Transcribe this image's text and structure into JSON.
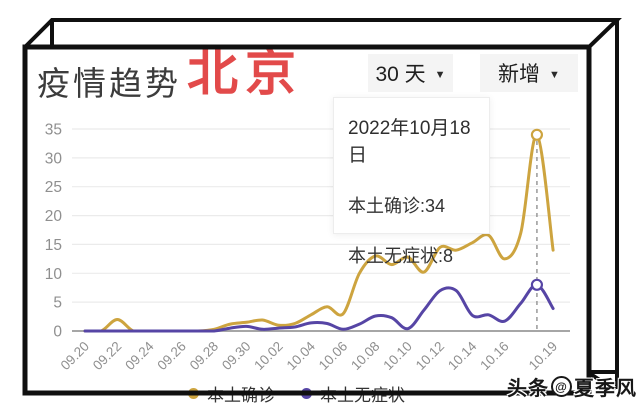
{
  "header": {
    "title": "疫情趋势",
    "region": "北京",
    "range_dropdown": {
      "label": "30 天",
      "caret": "▼"
    },
    "metric_dropdown": {
      "label": "新增",
      "caret": "▼"
    }
  },
  "tooltip": {
    "date": "2022年10月18日",
    "lines": [
      "本土确诊:34",
      "本土无症状:8"
    ]
  },
  "footer": {
    "watermark_prefix": "头条",
    "watermark_at": "@",
    "watermark_suffix": "夏季风"
  },
  "chart_data": {
    "type": "line",
    "title": "疫情趋势 北京 30天 新增",
    "x": [
      "09.20",
      "09.21",
      "09.22",
      "09.23",
      "09.24",
      "09.25",
      "09.26",
      "09.27",
      "09.28",
      "09.29",
      "09.30",
      "10.01",
      "10.02",
      "10.03",
      "10.04",
      "10.05",
      "10.06",
      "10.07",
      "10.08",
      "10.09",
      "10.10",
      "10.11",
      "10.12",
      "10.13",
      "10.14",
      "10.15",
      "10.16",
      "10.17",
      "10.18",
      "10.19"
    ],
    "x_tick_labels": [
      "09.20",
      "09.22",
      "09.24",
      "09.26",
      "09.28",
      "09.30",
      "10.02",
      "10.04",
      "10.06",
      "10.08",
      "10.10",
      "10.12",
      "10.14",
      "10.16",
      "10.19"
    ],
    "series": [
      {
        "name": "本土确诊",
        "color": "#cda43f",
        "values": [
          0,
          0,
          2,
          0,
          0,
          0,
          0,
          0,
          0.3,
          1.2,
          1.5,
          1.9,
          1.0,
          1.3,
          2.8,
          4.2,
          3.0,
          10,
          13,
          11.5,
          12.8,
          10.2,
          14.5,
          14,
          15.3,
          16.6,
          12.5,
          17,
          34,
          14
        ]
      },
      {
        "name": "本土无症状",
        "color": "#5645a5",
        "values": [
          0,
          0,
          0,
          0,
          0,
          0,
          0,
          0,
          0,
          0.5,
          0.8,
          0.3,
          0.5,
          0.7,
          1.4,
          1.3,
          0.3,
          1.2,
          2.6,
          2.3,
          0.4,
          3.6,
          7,
          7,
          2.7,
          2.8,
          1.7,
          4.8,
          8,
          3.9
        ]
      }
    ],
    "ylim": [
      0,
      35
    ],
    "yticks": [
      0,
      5,
      10,
      15,
      20,
      25,
      30,
      35
    ],
    "grid": true,
    "legend_position": "bottom",
    "highlight": {
      "date": "10.18",
      "confirmed": 34,
      "asymptomatic": 8
    }
  }
}
